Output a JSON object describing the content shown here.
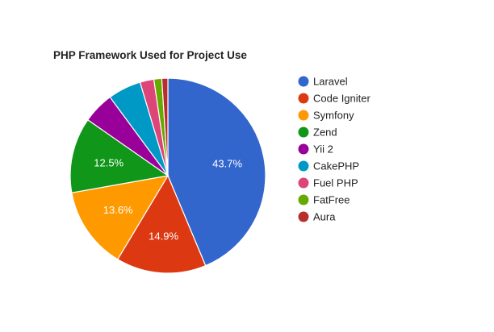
{
  "chart_data": {
    "type": "pie",
    "title": "PHP Framework Used for Project Use",
    "categories": [
      "Laravel",
      "Code Igniter",
      "Symfony",
      "Zend",
      "Yii 2",
      "CakePHP",
      "Fuel PHP",
      "FatFree",
      "Aura"
    ],
    "values": [
      43.7,
      14.9,
      13.6,
      12.5,
      5.2,
      5.5,
      2.3,
      1.3,
      1.0
    ],
    "colors": [
      "#3366cc",
      "#dc3912",
      "#ff9900",
      "#109618",
      "#990099",
      "#0099c6",
      "#dd4477",
      "#66aa00",
      "#b82e2e"
    ],
    "slice_labels": [
      "43.7%",
      "14.9%",
      "13.6%",
      "12.5%",
      "",
      "",
      "",
      "",
      ""
    ],
    "legend_position": "right"
  }
}
